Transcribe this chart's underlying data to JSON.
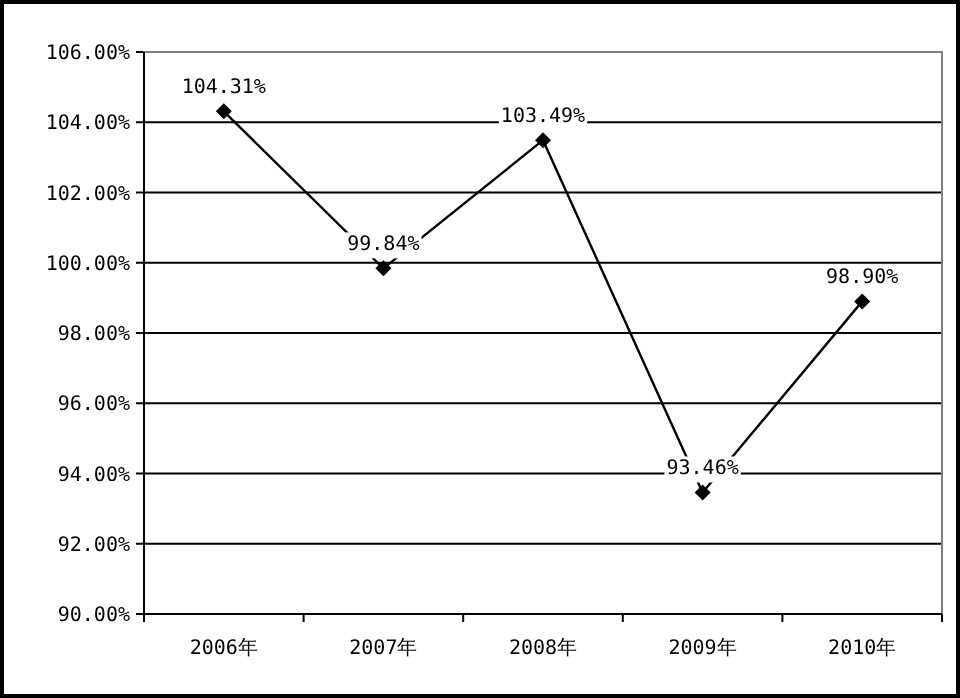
{
  "chart_data": {
    "type": "line",
    "categories": [
      "2006年",
      "2007年",
      "2008年",
      "2009年",
      "2010年"
    ],
    "values": [
      104.31,
      99.84,
      103.49,
      93.46,
      98.9
    ],
    "value_labels": [
      "104.31%",
      "99.84%",
      "103.49%",
      "93.46%",
      "98.90%"
    ],
    "color": "#000000",
    "ylim": [
      90,
      106
    ],
    "yticks": [
      {
        "value": 90,
        "label": "90.00%"
      },
      {
        "value": 92,
        "label": "92.00%"
      },
      {
        "value": 94,
        "label": "94.00%"
      },
      {
        "value": 96,
        "label": "96.00%"
      },
      {
        "value": 98,
        "label": "98.00%"
      },
      {
        "value": 100,
        "label": "100.00%"
      },
      {
        "value": 102,
        "label": "102.00%"
      },
      {
        "value": 104,
        "label": "104.00%"
      },
      {
        "value": 106,
        "label": "106.00%"
      }
    ],
    "grid": "y",
    "marker": "diamond"
  }
}
